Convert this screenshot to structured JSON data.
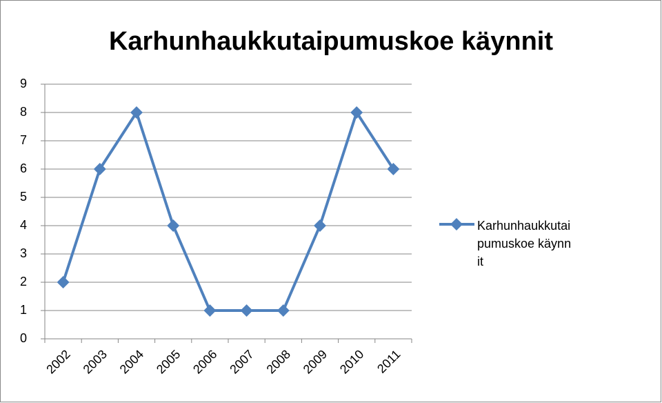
{
  "chart_data": {
    "type": "line",
    "title": "Karhunhaukkutaipumuskoe käynnit",
    "categories": [
      "2002",
      "2003",
      "2004",
      "2005",
      "2006",
      "2007",
      "2008",
      "2009",
      "2010",
      "2011"
    ],
    "series": [
      {
        "name": "Karhunhaukkutaipumuskoe käynnit",
        "color": "#4f81bd",
        "values": [
          2,
          6,
          8,
          4,
          1,
          1,
          1,
          4,
          8,
          6
        ]
      }
    ],
    "ylim": [
      0,
      9
    ],
    "yticks": [
      0,
      1,
      2,
      3,
      4,
      5,
      6,
      7,
      8,
      9
    ],
    "grid": true,
    "legend": "right"
  }
}
